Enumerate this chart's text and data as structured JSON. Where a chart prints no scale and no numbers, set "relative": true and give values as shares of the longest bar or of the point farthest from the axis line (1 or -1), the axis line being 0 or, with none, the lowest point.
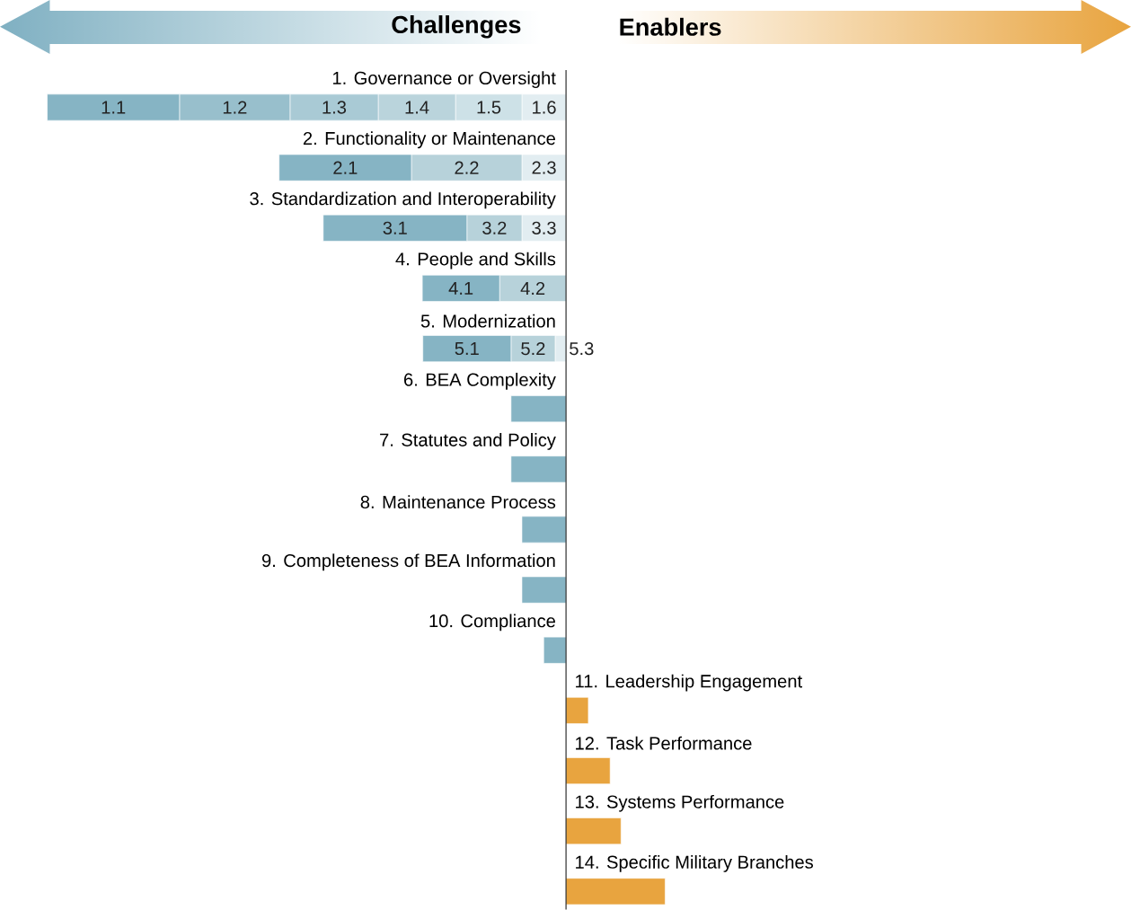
{
  "chart_data": {
    "type": "bar",
    "orientation": "horizontal",
    "stacked": true,
    "relative": true,
    "annotations": [
      "Challenges",
      "Enablers",
      "1.1",
      "1.2",
      "1.3",
      "1.4",
      "1.5",
      "1.6",
      "2.1",
      "2.2",
      "2.3",
      "3.1",
      "3.2",
      "3.3",
      "4.1",
      "4.2",
      "5.1",
      "5.2",
      "5.3"
    ],
    "categories": [
      "1. Governance or Oversight",
      "2. Functionality or Maintenance",
      "3. Standardization and Interoperability",
      "4. People and Skills",
      "5. Modernization",
      "6. BEA Complexity",
      "7. Statutes and Policy",
      "8. Maintenance Process",
      "9. Completeness of BEA Information",
      "10. Compliance",
      "11. Leadership Engagement",
      "12. Task Performance",
      "13. Systems Performance",
      "14. Specific Military Branches"
    ],
    "series": [
      {
        "values": [
          -0.085,
          -0.085,
          -0.085,
          -0.128,
          -0.021,
          -0.106,
          -0.106,
          -0.085,
          -0.085,
          -0.043,
          0.043,
          0.085,
          0.106,
          0.191
        ],
        "colors": [
          "#e2edf1",
          "#e2edf1",
          "#e2edf1",
          "#b7d2da",
          "#e2edf1",
          "#86b4c4",
          "#86b4c4",
          "#86b4c4",
          "#86b4c4",
          "#86b4c4",
          "#e8a43f",
          "#e8a43f",
          "#e8a43f",
          "#e8a43f"
        ]
      },
      {
        "values": [
          -0.128,
          -0.213,
          -0.106,
          -0.149,
          -0.085,
          null,
          null,
          null,
          null,
          null,
          null,
          null,
          null,
          null
        ],
        "colors": [
          "#cde1e7",
          "#b7d2da",
          "#b7d2da",
          "#86b4c4",
          "#b7d2da",
          null,
          null,
          null,
          null,
          null,
          null,
          null,
          null,
          null
        ]
      },
      {
        "values": [
          -0.149,
          -0.255,
          -0.277,
          null,
          -0.17,
          null,
          null,
          null,
          null,
          null,
          null,
          null,
          null,
          null
        ],
        "colors": [
          "#bad4dc",
          "#86b4c4",
          "#86b4c4",
          null,
          "#86b4c4",
          null,
          null,
          null,
          null,
          null,
          null,
          null,
          null,
          null
        ]
      },
      {
        "values": [
          -0.17,
          null,
          null,
          null,
          null,
          null,
          null,
          null,
          null,
          null,
          null,
          null,
          null,
          null
        ],
        "colors": [
          "#a9cad5",
          null,
          null,
          null,
          null,
          null,
          null,
          null,
          null,
          null,
          null,
          null,
          null,
          null
        ]
      },
      {
        "values": [
          -0.213,
          null,
          null,
          null,
          null,
          null,
          null,
          null,
          null,
          null,
          null,
          null,
          null,
          null
        ],
        "colors": [
          "#98bfcc",
          null,
          null,
          null,
          null,
          null,
          null,
          null,
          null,
          null,
          null,
          null,
          null,
          null
        ]
      },
      {
        "values": [
          -0.255,
          null,
          null,
          null,
          null,
          null,
          null,
          null,
          null,
          null,
          null,
          null,
          null,
          null
        ],
        "colors": [
          "#86b4c4",
          null,
          null,
          null,
          null,
          null,
          null,
          null,
          null,
          null,
          null,
          null,
          null,
          null
        ]
      }
    ]
  }
}
